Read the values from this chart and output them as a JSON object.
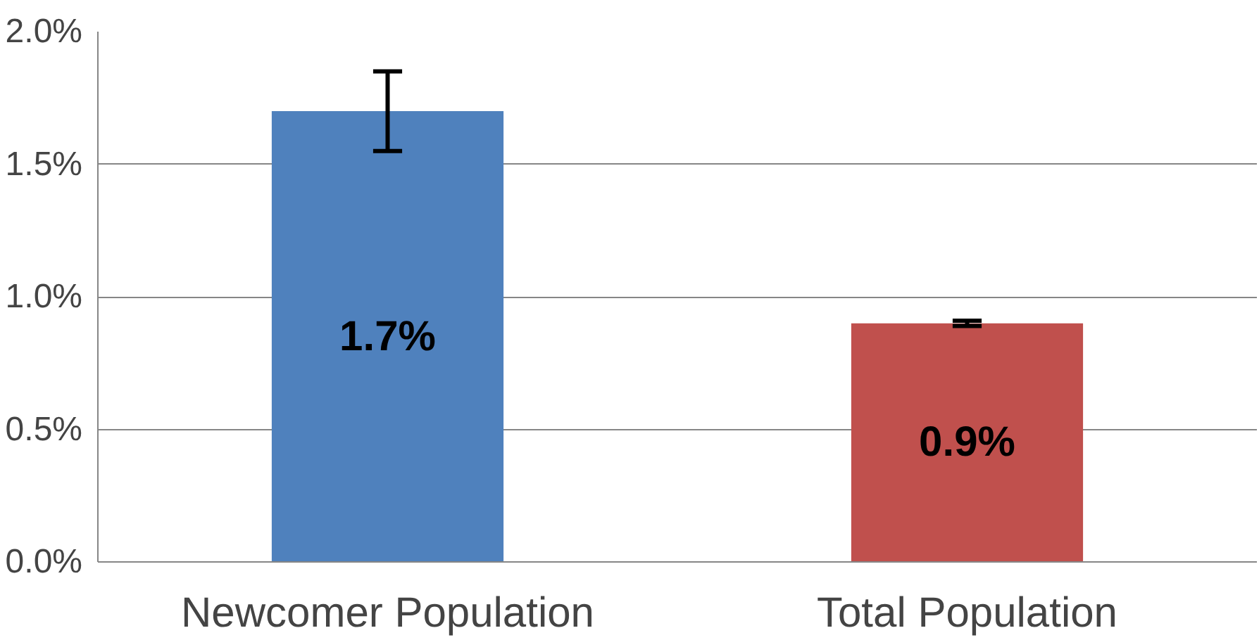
{
  "chart_data": {
    "type": "bar",
    "categories": [
      "Newcomer Population",
      "Total Population"
    ],
    "values": [
      1.7,
      0.9
    ],
    "colors": [
      "#4f81bd",
      "#c0504d"
    ],
    "errors": [
      0.15,
      0.01
    ],
    "value_labels": [
      "1.7%",
      "0.9%"
    ],
    "ylim": [
      0,
      2
    ],
    "yticks": [
      {
        "value": 0,
        "label": "0.0%"
      },
      {
        "value": 0.5,
        "label": "0.5%"
      },
      {
        "value": 1,
        "label": "1.0%"
      },
      {
        "value": 1.5,
        "label": "1.5%"
      },
      {
        "value": 2,
        "label": "2.0%"
      }
    ],
    "grid": "y"
  }
}
